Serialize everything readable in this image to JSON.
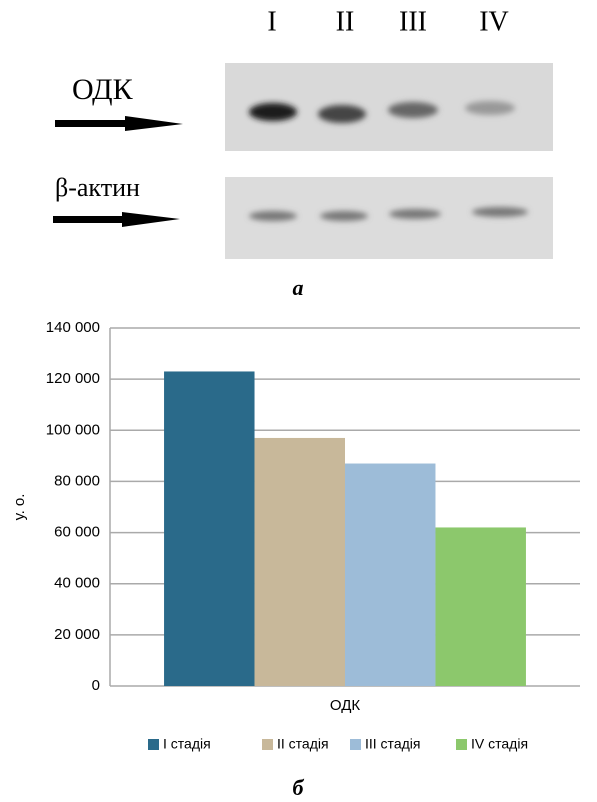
{
  "blot": {
    "lanes": [
      "I",
      "II",
      "III",
      "IV"
    ],
    "rows": [
      "ОДК",
      "β-актин"
    ],
    "caption": "а"
  },
  "chart_data": {
    "type": "bar",
    "y_label": "у. о.",
    "categories": [
      "ОДК"
    ],
    "series": [
      {
        "name": "I стадія",
        "color": "#2a6a8a",
        "values": [
          123000
        ]
      },
      {
        "name": "II стадія",
        "color": "#c8b89a",
        "values": [
          97000
        ]
      },
      {
        "name": "III стадія",
        "color": "#9dbcd8",
        "values": [
          87000
        ]
      },
      {
        "name": "IV стадія",
        "color": "#8cc86c",
        "values": [
          62000
        ]
      }
    ],
    "ylim": [
      0,
      140000
    ],
    "yticks": [
      0,
      {
        "value": 20000,
        "label": "20 000"
      },
      {
        "value": 40000,
        "label": "40 000"
      },
      {
        "value": 60000,
        "label": "60 000"
      },
      {
        "value": 80000,
        "label": "80 000"
      },
      {
        "value": 100000,
        "label": "100 000"
      },
      {
        "value": 120000,
        "label": "120 000"
      },
      {
        "value": 140000,
        "label": "140 000"
      }
    ],
    "grid": true,
    "caption": "б"
  }
}
